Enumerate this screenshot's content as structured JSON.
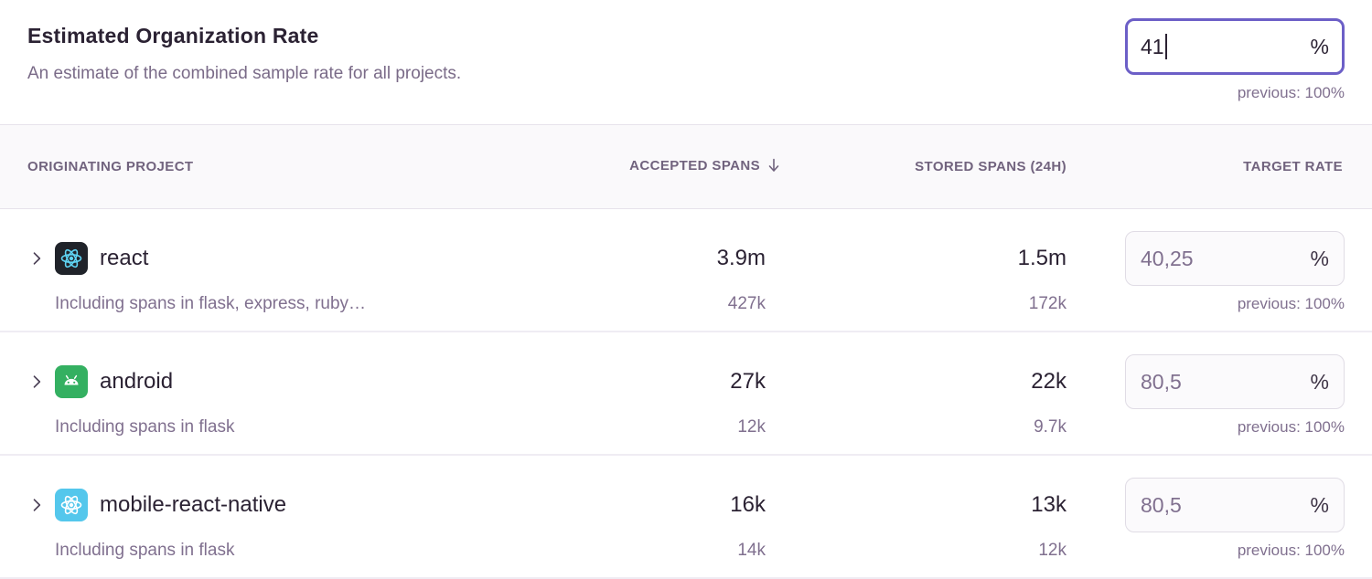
{
  "colors": {
    "accent_purple": "#6C5FC7",
    "text_dark": "#2B2233",
    "text_muted": "#80708F",
    "header_text": "#71637E",
    "react_icon_bg": "#20232A",
    "react_icon_fg": "#5FD4F4",
    "android_icon_bg": "#34B061",
    "android_icon_fg": "#FFFFFF",
    "react_native_icon_bg": "#54C7EC",
    "react_native_icon_fg": "#FFFFFF"
  },
  "header": {
    "title": "Estimated Organization Rate",
    "subtitle": "An estimate of the combined sample rate for all projects.",
    "org_rate_input": {
      "value": "41",
      "suffix": "%",
      "previous": "previous: 100%"
    }
  },
  "table": {
    "columns": {
      "project": "ORIGINATING PROJECT",
      "accepted": "ACCEPTED SPANS",
      "stored": "STORED SPANS (24H)",
      "target": "TARGET RATE"
    },
    "sort": {
      "column": "accepted",
      "direction": "desc"
    },
    "rows": [
      {
        "project": "react",
        "platform": "react",
        "subtext": "Including spans in flask, express, ruby…",
        "accepted": "3.9m",
        "accepted_sub": "427k",
        "stored": "1.5m",
        "stored_sub": "172k",
        "target_rate": "40,25",
        "suffix": "%",
        "previous": "previous: 100%"
      },
      {
        "project": "android",
        "platform": "android",
        "subtext": "Including spans in flask",
        "accepted": "27k",
        "accepted_sub": "12k",
        "stored": "22k",
        "stored_sub": "9.7k",
        "target_rate": "80,5",
        "suffix": "%",
        "previous": "previous: 100%"
      },
      {
        "project": "mobile-react-native",
        "platform": "react-native",
        "subtext": "Including spans in flask",
        "accepted": "16k",
        "accepted_sub": "14k",
        "stored": "13k",
        "stored_sub": "12k",
        "target_rate": "80,5",
        "suffix": "%",
        "previous": "previous: 100%"
      }
    ]
  }
}
